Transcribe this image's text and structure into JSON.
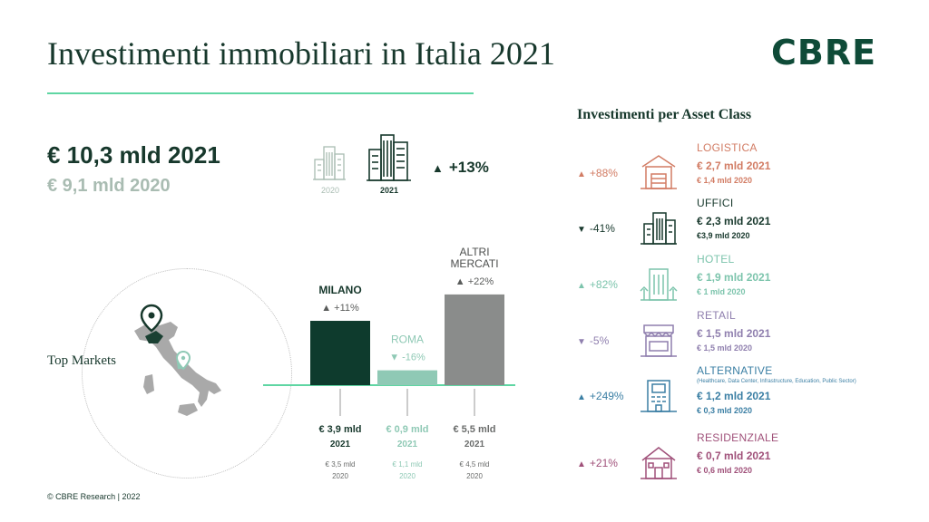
{
  "title": "Investimenti immobiliari in Italia 2021",
  "brand": "CBRE",
  "totals": {
    "value_2021": "€ 10,3 mld 2021",
    "value_2020": "€ 9,1 mld 2020",
    "year_2020": "2020",
    "year_2021": "2021",
    "growth": "+13%"
  },
  "map_label": "Top Markets",
  "footer": "© CBRE Research | 2022",
  "chart_data": {
    "type": "bar",
    "title": "Top Markets",
    "unit": "€ mld",
    "categories": [
      "MILANO",
      "ROMA",
      "ALTRI MERCATI"
    ],
    "series": [
      {
        "name": "2021",
        "values": [
          3.9,
          0.9,
          5.5
        ]
      },
      {
        "name": "2020",
        "values": [
          3.5,
          1.1,
          4.5
        ]
      }
    ],
    "changes": [
      "+11%",
      "-16%",
      "+22%"
    ],
    "colors": [
      "#0e3b2d",
      "#8fc9b5",
      "#8a8c8b"
    ],
    "value_2021_labels": [
      "€ 3,9 mld",
      "€ 0,9 mld",
      "€ 5,5 mld"
    ],
    "value_2020_labels": [
      "€ 3,5 mld",
      "€ 1,1 mld",
      "€ 4,5 mld"
    ],
    "year_2021": "2021",
    "year_2020": "2020"
  },
  "assets": {
    "title": "Investimenti  per Asset Class",
    "items": [
      {
        "name": "LOGISTICA",
        "subtitle": "",
        "v2021": "€ 2,7 mld  2021",
        "v2020": "€ 1,4 mld 2020",
        "change": "+88%",
        "direction": "up",
        "color": "#d27c64",
        "icon": "warehouse-icon"
      },
      {
        "name": "UFFICI",
        "subtitle": "",
        "v2021": "€ 2,3 mld 2021",
        "v2020": "€3,9 mld 2020",
        "change": "-41%",
        "direction": "down",
        "color": "#17382c",
        "icon": "office-building-icon"
      },
      {
        "name": "HOTEL",
        "subtitle": "",
        "v2021": "€ 1,9 mld 2021",
        "v2020": "€ 1 mld 2020",
        "change": "+82%",
        "direction": "up",
        "color": "#7cc4ac",
        "icon": "hotel-icon"
      },
      {
        "name": "RETAIL",
        "subtitle": "",
        "v2021": "€ 1,5 mld 2021",
        "v2020": "€ 1,5 mld 2020",
        "change": "-5%",
        "direction": "down",
        "color": "#8f7fae",
        "icon": "shop-icon"
      },
      {
        "name": "ALTERNATIVE",
        "subtitle": "(Healthcare, Data Center, Infrastructure, Education, Public Sector)",
        "v2021": "€ 1,2 mld 2021",
        "v2020": "€ 0,3 mld 2020",
        "change": "+249%",
        "direction": "up",
        "color": "#3b7fa4",
        "icon": "data-center-icon"
      },
      {
        "name": "RESIDENZIALE",
        "subtitle": "",
        "v2021": "€ 0,7 mld 2021",
        "v2020": "€ 0,6 mld 2020",
        "change": "+21%",
        "direction": "up",
        "color": "#a0517a",
        "icon": "house-icon"
      }
    ]
  }
}
